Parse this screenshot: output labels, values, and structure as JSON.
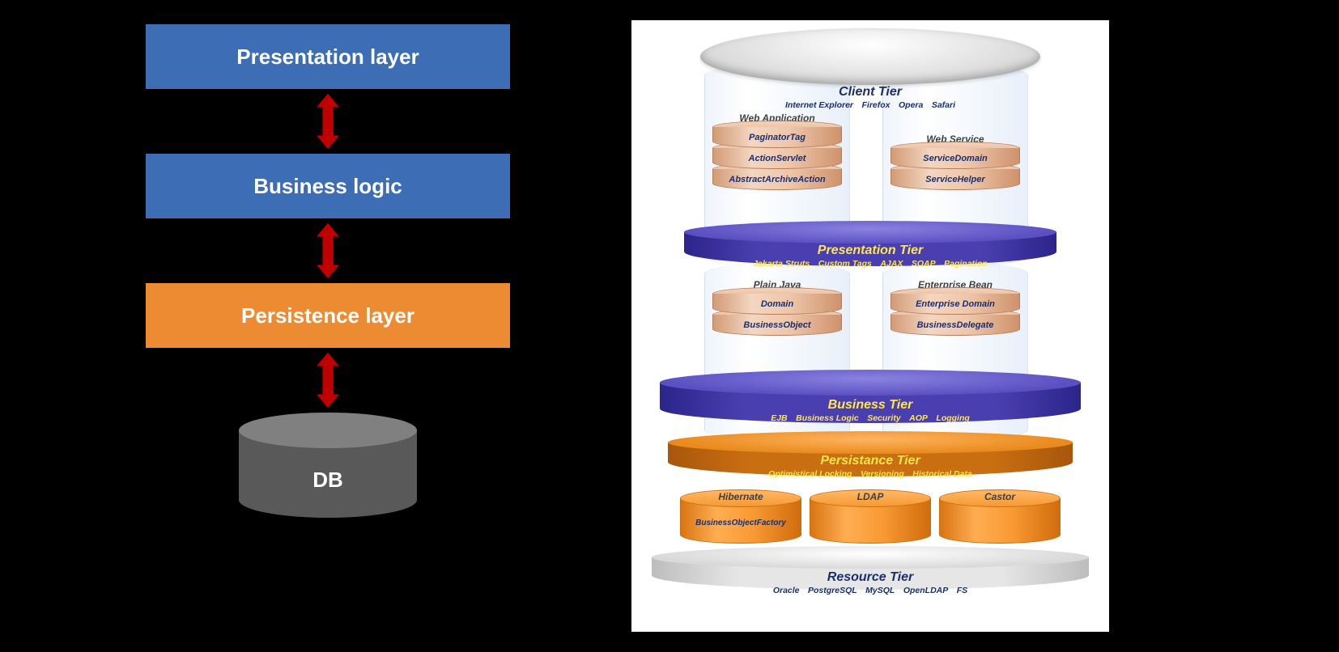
{
  "left": {
    "layers": [
      {
        "label": "Presentation layer",
        "bg": "#3d6db5"
      },
      {
        "label": "Business logic",
        "bg": "#3d6db5"
      },
      {
        "label": "Persistence layer",
        "bg": "#ed8b33"
      }
    ],
    "db_label": "DB",
    "arrow": {
      "fill": "#c00000",
      "stroke": "#000000",
      "width": 30,
      "height": 70
    },
    "db_colors": {
      "top": "#808080",
      "body": "#595959",
      "text": "#ffffff"
    }
  },
  "right": {
    "bg": "#ffffff",
    "text_title_color": "#1a2f6d",
    "text_yellow": "#ffe64d",
    "platter_gray": "#d9d9d9",
    "purple": {
      "top": "#6a62c9",
      "side": "#4a3fb0"
    },
    "orange": {
      "top": "#e98a1d",
      "side": "#c96f12"
    },
    "client": {
      "title": "Client Tier",
      "sub": "Internet Explorer Firefox Opera Safari"
    },
    "cols1": {
      "left": {
        "head": "Web Application",
        "items": [
          "PaginatorTag",
          "ActionServlet",
          "AbstractArchiveAction"
        ]
      },
      "right": {
        "head": "Web Service",
        "items": [
          "ServiceDomain",
          "ServiceHelper"
        ]
      }
    },
    "presentation": {
      "title": "Presentation Tier",
      "sub": "Jakarta Struts Custom Tags AJAX SOAP Pagination"
    },
    "cols2": {
      "left": {
        "head": "Plain Java",
        "items": [
          "Domain",
          "BusinessObject"
        ]
      },
      "right": {
        "head": "Enterprise Bean",
        "items": [
          "Enterprise Domain",
          "BusinessDelegate"
        ]
      }
    },
    "business": {
      "title": "Business Tier",
      "sub": "EJB Business Logic Security AOP Logging"
    },
    "persistance": {
      "title": "Persistance Tier",
      "sub": "Optimistical Locking Versioning Historical Data"
    },
    "orng_cyls": [
      {
        "title": "Hibernate",
        "sub": "BusinessObjectFactory"
      },
      {
        "title": "LDAP",
        "sub": ""
      },
      {
        "title": "Castor",
        "sub": ""
      }
    ],
    "resource": {
      "title": "Resource Tier",
      "sub": "Oracle PostgreSQL MySQL OpenLDAP FS"
    }
  }
}
